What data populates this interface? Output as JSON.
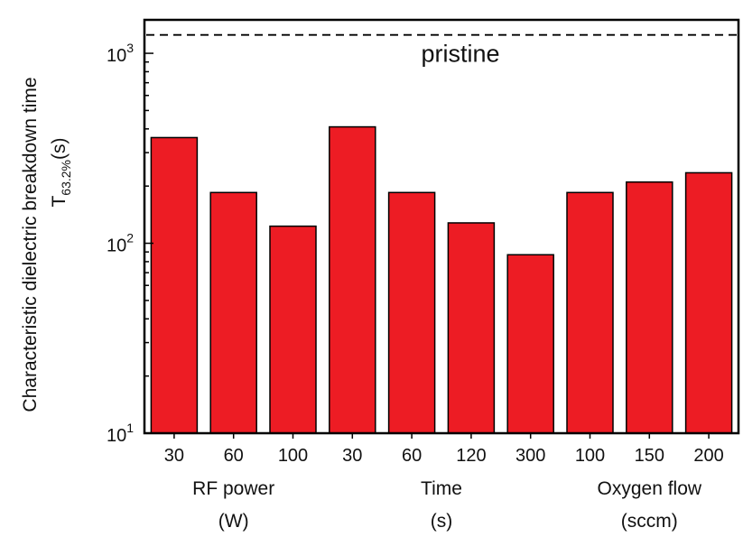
{
  "chart_data": {
    "type": "bar",
    "title": "",
    "ylabel": {
      "line1": "Characteristic dielectric breakdown time",
      "line2_main": "T",
      "line2_sub": "63.2%",
      "line2_unit": "(s)"
    },
    "yscale": "log",
    "ylim": [
      10,
      1500
    ],
    "yticks": [
      {
        "value": 10,
        "base": "10",
        "exp": "1"
      },
      {
        "value": 100,
        "base": "10",
        "exp": "2"
      },
      {
        "value": 1000,
        "base": "10",
        "exp": "3"
      }
    ],
    "categories": [
      "30",
      "60",
      "100",
      "30",
      "60",
      "120",
      "300",
      "100",
      "150",
      "200"
    ],
    "values": [
      360,
      185,
      123,
      410,
      185,
      128,
      87,
      185,
      210,
      235
    ],
    "bar_color": "#ed1c24",
    "groups": [
      {
        "line1": "RF power",
        "line2": "(W)",
        "range": [
          0,
          2
        ]
      },
      {
        "line1": "Time",
        "line2": "(s)",
        "range": [
          3,
          6
        ]
      },
      {
        "line1": "Oxygen flow",
        "line2": "(sccm)",
        "range": [
          7,
          9
        ]
      }
    ],
    "reference_line": {
      "label": "pristine",
      "value": 1250,
      "style": "dashed"
    },
    "legend": "none",
    "grid": false
  }
}
